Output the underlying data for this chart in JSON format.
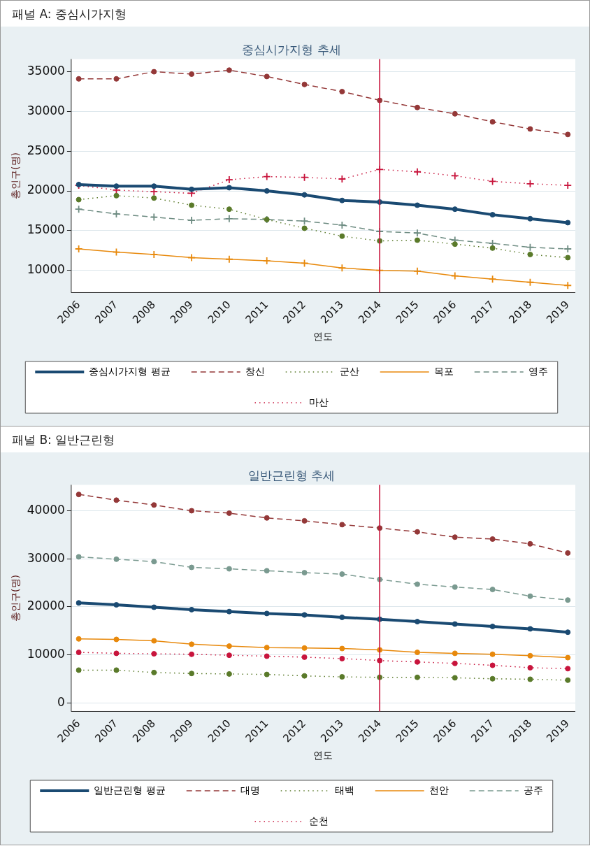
{
  "chart_data": [
    {
      "type": "line",
      "title": "패널 A: 중심시가지형",
      "subtitle": "중심시가지형 추세",
      "xlabel": "연도",
      "ylabel": "총인구(명)",
      "x": [
        2006,
        2007,
        2008,
        2009,
        2010,
        2011,
        2012,
        2013,
        2014,
        2015,
        2016,
        2017,
        2018,
        2019
      ],
      "xlim": [
        2005.8,
        2019.2
      ],
      "xticks": [
        2006,
        2007,
        2008,
        2009,
        2010,
        2011,
        2012,
        2013,
        2014,
        2015,
        2016,
        2017,
        2018,
        2019
      ],
      "ylim": [
        7200,
        36600
      ],
      "yticks": [
        10000,
        15000,
        20000,
        25000,
        30000,
        35000
      ],
      "grid": "y",
      "legend": "bottom",
      "ref_lines": [
        {
          "axis": "x",
          "value": 2014,
          "color": "#c8143c",
          "line_style": "solid"
        }
      ],
      "series": [
        {
          "name": "중심시가지형 평균",
          "color": "#1a4a72",
          "marker": "circle",
          "line_style": "solid",
          "values": [
            20800,
            20600,
            20600,
            20200,
            20400,
            20000,
            19500,
            18800,
            18600,
            18200,
            17700,
            17000,
            16500,
            16000
          ]
        },
        {
          "name": "창신",
          "color": "#943838",
          "marker": "circle",
          "line_style": "dashed",
          "values": [
            34100,
            34100,
            35000,
            34700,
            35200,
            34400,
            33400,
            32500,
            31400,
            30500,
            29700,
            28700,
            27800,
            27100
          ]
        },
        {
          "name": "군산",
          "color": "#5a7a2a",
          "marker": "circle",
          "line_style": "dotted",
          "values": [
            18900,
            19400,
            19100,
            18200,
            17700,
            16400,
            15300,
            14300,
            13700,
            13800,
            13300,
            12800,
            12000,
            11600
          ]
        },
        {
          "name": "목포",
          "color": "#e8890c",
          "marker": "cross",
          "line_style": "solid",
          "values": [
            12700,
            12300,
            12000,
            11600,
            11400,
            11200,
            10900,
            10300,
            10000,
            9900,
            9300,
            8900,
            8500,
            8100
          ]
        },
        {
          "name": "영주",
          "color": "#6e8c82",
          "marker": "cross",
          "line_style": "dashed",
          "values": [
            17700,
            17100,
            16700,
            16300,
            16500,
            16400,
            16200,
            15700,
            14900,
            14700,
            13800,
            13400,
            12900,
            12700
          ]
        },
        {
          "name": "마산",
          "color": "#c8143c",
          "marker": "cross",
          "line_style": "dotted",
          "values": [
            20700,
            20100,
            19900,
            19700,
            21400,
            21800,
            21700,
            21500,
            22700,
            22400,
            21900,
            21200,
            20900,
            20700
          ]
        }
      ]
    },
    {
      "type": "line",
      "title": "패널 B: 일반근린형",
      "subtitle": "일반근린형 추세",
      "xlabel": "연도",
      "ylabel": "총인구(명)",
      "x": [
        2006,
        2007,
        2008,
        2009,
        2010,
        2011,
        2012,
        2013,
        2014,
        2015,
        2016,
        2017,
        2018,
        2019
      ],
      "xlim": [
        2005.8,
        2019.2
      ],
      "xticks": [
        2006,
        2007,
        2008,
        2009,
        2010,
        2011,
        2012,
        2013,
        2014,
        2015,
        2016,
        2017,
        2018,
        2019
      ],
      "ylim": [
        -1800,
        45400
      ],
      "yticks": [
        0,
        10000,
        20000,
        30000,
        40000
      ],
      "grid": "y",
      "legend": "bottom",
      "ref_lines": [
        {
          "axis": "x",
          "value": 2014,
          "color": "#c8143c",
          "line_style": "solid"
        }
      ],
      "series": [
        {
          "name": "일반근린형 평균",
          "color": "#1a4a72",
          "marker": "circle",
          "line_style": "solid",
          "values": [
            20800,
            20400,
            19900,
            19400,
            19000,
            18600,
            18300,
            17800,
            17400,
            16900,
            16400,
            15900,
            15400,
            14700
          ]
        },
        {
          "name": "대명",
          "color": "#943838",
          "marker": "circle",
          "line_style": "dashed",
          "values": [
            43400,
            42200,
            41200,
            40000,
            39500,
            38500,
            37900,
            37100,
            36400,
            35600,
            34500,
            34100,
            33100,
            31200
          ]
        },
        {
          "name": "태백",
          "color": "#5a7a2a",
          "marker": "circle",
          "line_style": "dotted",
          "values": [
            6800,
            6800,
            6300,
            6100,
            6000,
            5900,
            5600,
            5400,
            5300,
            5300,
            5200,
            5000,
            4900,
            4700
          ]
        },
        {
          "name": "천안",
          "color": "#e8890c",
          "marker": "circle",
          "line_style": "solid",
          "values": [
            13300,
            13200,
            12900,
            12200,
            11800,
            11500,
            11400,
            11300,
            11000,
            10500,
            10300,
            10100,
            9800,
            9400
          ]
        },
        {
          "name": "공주",
          "color": "#7a9a90",
          "marker": "circle",
          "line_style": "dashed",
          "values": [
            30400,
            29900,
            29400,
            28200,
            27900,
            27500,
            27100,
            26800,
            25700,
            24700,
            24100,
            23600,
            22200,
            21400
          ]
        },
        {
          "name": "순천",
          "color": "#c8143c",
          "marker": "circle",
          "line_style": "dotted",
          "values": [
            10500,
            10300,
            10200,
            10100,
            9900,
            9700,
            9500,
            9200,
            8800,
            8500,
            8200,
            7800,
            7300,
            7100
          ]
        }
      ]
    }
  ]
}
